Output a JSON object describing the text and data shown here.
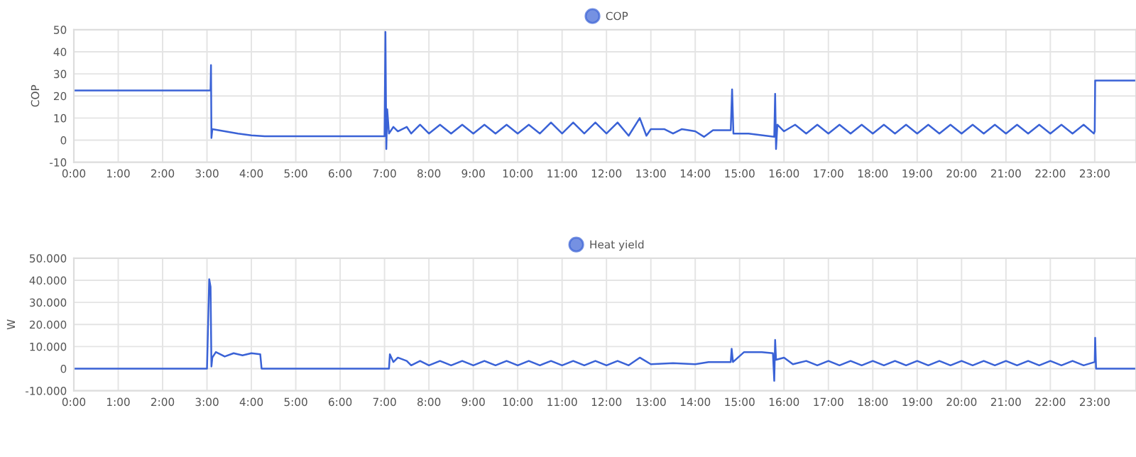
{
  "chart_data": [
    {
      "type": "line",
      "ylabel": "COP",
      "legend": "top",
      "grid": true,
      "xlim": [
        0,
        23.93
      ],
      "ylim": [
        -10,
        50
      ],
      "yticks": [
        -10,
        0,
        10,
        20,
        30,
        40,
        50
      ],
      "xticks": [
        {
          "value": 0,
          "label": "0:00"
        },
        {
          "value": 1,
          "label": "1:00"
        },
        {
          "value": 2,
          "label": "2:00"
        },
        {
          "value": 3,
          "label": "3:00"
        },
        {
          "value": 4,
          "label": "4:00"
        },
        {
          "value": 5,
          "label": "5:00"
        },
        {
          "value": 6,
          "label": "6:00"
        },
        {
          "value": 7,
          "label": "7:00"
        },
        {
          "value": 8,
          "label": "8:00"
        },
        {
          "value": 9,
          "label": "9:00"
        },
        {
          "value": 10,
          "label": "10:00"
        },
        {
          "value": 11,
          "label": "11:00"
        },
        {
          "value": 12,
          "label": "12:00"
        },
        {
          "value": 13,
          "label": "13:00"
        },
        {
          "value": 14,
          "label": "14:00"
        },
        {
          "value": 15,
          "label": "15:00"
        },
        {
          "value": 16,
          "label": "16:00"
        },
        {
          "value": 17,
          "label": "17:00"
        },
        {
          "value": 18,
          "label": "18:00"
        },
        {
          "value": 19,
          "label": "19:00"
        },
        {
          "value": 20,
          "label": "20:00"
        },
        {
          "value": 21,
          "label": "21:00"
        },
        {
          "value": 22,
          "label": "22:00"
        },
        {
          "value": 23,
          "label": "23:00"
        }
      ],
      "series": [
        {
          "name": "COP",
          "color": "#3a62d6",
          "x": [
            0,
            3.08,
            3.09,
            3.1,
            3.12,
            3.4,
            3.7,
            4.0,
            4.3,
            7.0,
            7.02,
            7.04,
            7.06,
            7.1,
            7.2,
            7.3,
            7.5,
            7.6,
            7.8,
            8.0,
            8.25,
            8.5,
            8.75,
            9.0,
            9.25,
            9.5,
            9.75,
            10.0,
            10.25,
            10.5,
            10.75,
            11.0,
            11.25,
            11.5,
            11.75,
            12.0,
            12.25,
            12.5,
            12.75,
            12.9,
            13.0,
            13.3,
            13.5,
            13.7,
            14.0,
            14.2,
            14.4,
            14.8,
            14.83,
            14.86,
            15.2,
            15.78,
            15.8,
            15.82,
            15.85,
            16.0,
            16.25,
            16.5,
            16.75,
            17.0,
            17.25,
            17.5,
            17.75,
            18.0,
            18.25,
            18.5,
            18.75,
            19.0,
            19.25,
            19.5,
            19.75,
            20.0,
            20.25,
            20.5,
            20.75,
            21.0,
            21.25,
            21.5,
            21.75,
            22.0,
            22.25,
            22.5,
            22.75,
            22.98,
            23.0,
            23.01,
            23.93
          ],
          "values": [
            22.5,
            22.5,
            34,
            1,
            5,
            4,
            3,
            2.2,
            1.8,
            1.8,
            49,
            -4,
            14,
            3,
            6,
            4,
            6,
            3,
            7,
            3,
            7,
            3,
            7,
            3,
            7,
            3,
            7,
            3,
            7,
            3,
            8,
            3,
            8,
            3,
            8,
            3,
            8,
            2,
            10,
            2,
            5,
            5,
            3,
            5,
            4,
            1.5,
            4.5,
            4.5,
            23,
            3,
            3,
            1.5,
            21,
            -4,
            7,
            4,
            7,
            3,
            7,
            3,
            7,
            3,
            7,
            3,
            7,
            3,
            7,
            3,
            7,
            3,
            7,
            3,
            7,
            3,
            7,
            3,
            7,
            3,
            7,
            3,
            7,
            3,
            7,
            3,
            4,
            27,
            27
          ]
        }
      ]
    },
    {
      "type": "line",
      "ylabel": "W",
      "legend": "top",
      "grid": true,
      "xlim": [
        0,
        23.93
      ],
      "ylim": [
        -10000,
        50000
      ],
      "yticks": [
        {
          "value": -10000,
          "label": "-10.000"
        },
        0,
        {
          "value": 10000,
          "label": "10.000"
        },
        {
          "value": 20000,
          "label": "20.000"
        },
        {
          "value": 30000,
          "label": "30.000"
        },
        {
          "value": 40000,
          "label": "40.000"
        },
        {
          "value": 50000,
          "label": "50.000"
        }
      ],
      "xticks": [
        {
          "value": 0,
          "label": "0:00"
        },
        {
          "value": 1,
          "label": "1:00"
        },
        {
          "value": 2,
          "label": "2:00"
        },
        {
          "value": 3,
          "label": "3:00"
        },
        {
          "value": 4,
          "label": "4:00"
        },
        {
          "value": 5,
          "label": "5:00"
        },
        {
          "value": 6,
          "label": "6:00"
        },
        {
          "value": 7,
          "label": "7:00"
        },
        {
          "value": 8,
          "label": "8:00"
        },
        {
          "value": 9,
          "label": "9:00"
        },
        {
          "value": 10,
          "label": "10:00"
        },
        {
          "value": 11,
          "label": "11:00"
        },
        {
          "value": 12,
          "label": "12:00"
        },
        {
          "value": 13,
          "label": "13:00"
        },
        {
          "value": 14,
          "label": "14:00"
        },
        {
          "value": 15,
          "label": "15:00"
        },
        {
          "value": 16,
          "label": "16:00"
        },
        {
          "value": 17,
          "label": "17:00"
        },
        {
          "value": 18,
          "label": "18:00"
        },
        {
          "value": 19,
          "label": "19:00"
        },
        {
          "value": 20,
          "label": "20:00"
        },
        {
          "value": 21,
          "label": "21:00"
        },
        {
          "value": 22,
          "label": "22:00"
        },
        {
          "value": 23,
          "label": "23:00"
        }
      ],
      "series": [
        {
          "name": "Heat yield",
          "color": "#3a62d6",
          "x": [
            0,
            3.0,
            3.05,
            3.08,
            3.1,
            3.12,
            3.2,
            3.4,
            3.6,
            3.8,
            4.0,
            4.2,
            4.23,
            7.1,
            7.12,
            7.2,
            7.3,
            7.5,
            7.6,
            7.8,
            8.0,
            8.25,
            8.5,
            8.75,
            9.0,
            9.25,
            9.5,
            9.75,
            10.0,
            10.25,
            10.5,
            10.75,
            11.0,
            11.25,
            11.5,
            11.75,
            12.0,
            12.25,
            12.5,
            12.75,
            13.0,
            13.5,
            14.0,
            14.3,
            14.8,
            14.82,
            14.85,
            15.1,
            15.5,
            15.75,
            15.78,
            15.8,
            15.82,
            16.0,
            16.2,
            16.5,
            16.75,
            17.0,
            17.25,
            17.5,
            17.75,
            18.0,
            18.25,
            18.5,
            18.75,
            19.0,
            19.25,
            19.5,
            19.75,
            20.0,
            20.25,
            20.5,
            20.75,
            21.0,
            21.25,
            21.5,
            21.75,
            22.0,
            22.25,
            22.5,
            22.75,
            23.0,
            23.01,
            23.03,
            23.93
          ],
          "values": [
            0,
            0,
            40500,
            37000,
            1000,
            5000,
            7500,
            5500,
            7000,
            6000,
            7000,
            6500,
            0,
            0,
            6500,
            3000,
            5000,
            3500,
            1500,
            3500,
            1500,
            3500,
            1500,
            3500,
            1500,
            3500,
            1500,
            3500,
            1500,
            3500,
            1500,
            3500,
            1500,
            3500,
            1500,
            3500,
            1500,
            3500,
            1500,
            5000,
            2000,
            2500,
            2000,
            3000,
            3000,
            9000,
            3000,
            7500,
            7500,
            7000,
            -5500,
            13000,
            4000,
            5000,
            2000,
            3500,
            1500,
            3500,
            1500,
            3500,
            1500,
            3500,
            1500,
            3500,
            1500,
            3500,
            1500,
            3500,
            1500,
            3500,
            1500,
            3500,
            1500,
            3500,
            1500,
            3500,
            1500,
            3500,
            1500,
            3500,
            1500,
            3000,
            14000,
            0,
            0
          ]
        }
      ]
    }
  ]
}
